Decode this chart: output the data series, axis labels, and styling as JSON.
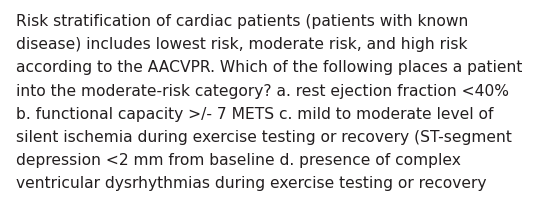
{
  "lines": [
    "Risk stratification of cardiac patients (patients with known",
    "disease) includes lowest risk, moderate risk, and high risk",
    "according to the AACVPR. Which of the following places a patient",
    "into the moderate-risk category? a. rest ejection fraction <40%",
    "b. functional capacity >/- 7 METS c. mild to moderate level of",
    "silent ischemia during exercise testing or recovery (ST-segment",
    "depression <2 mm from baseline d. presence of complex",
    "ventricular dysrhythmias during exercise testing or recovery"
  ],
  "background_color": "#ffffff",
  "text_color": "#231f20",
  "font_size": 11.2,
  "fig_width": 5.58,
  "fig_height": 2.09,
  "dpi": 100
}
